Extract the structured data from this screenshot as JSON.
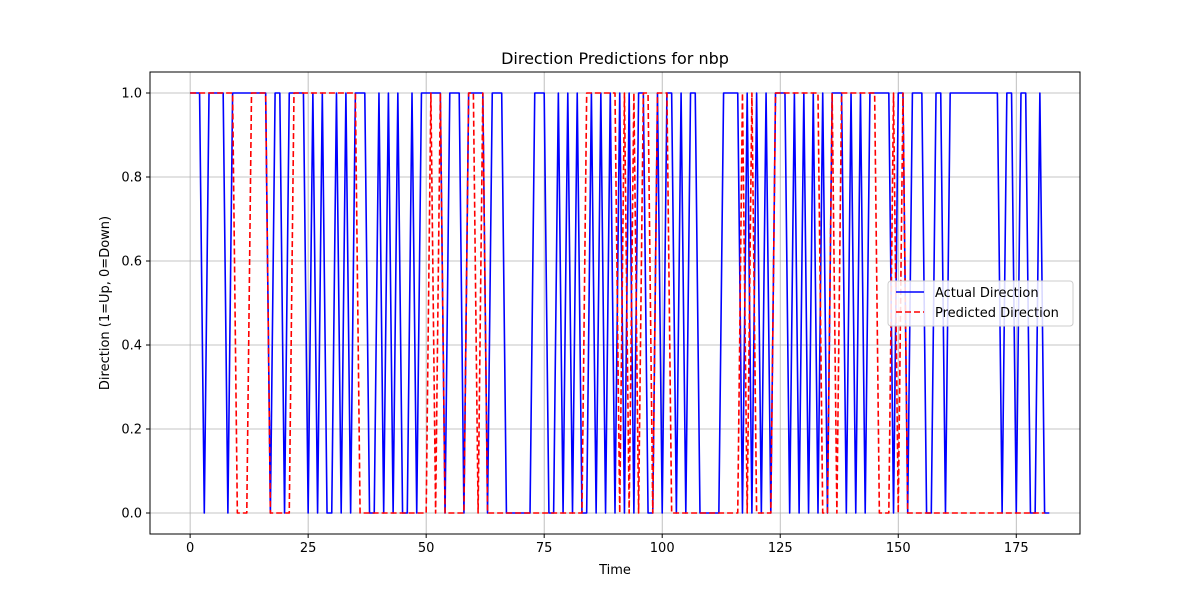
{
  "chart_data": {
    "type": "line",
    "title": "Direction Predictions for nbp",
    "xlabel": "Time",
    "ylabel": "Direction (1=Up, 0=Down)",
    "xlim": [
      -8.5,
      188.5
    ],
    "ylim": [
      -0.05,
      1.05
    ],
    "xticks": [
      0,
      25,
      50,
      75,
      100,
      125,
      150,
      175
    ],
    "yticks": [
      0.0,
      0.2,
      0.4,
      0.6,
      0.8,
      1.0
    ],
    "xtick_labels": [
      "0",
      "25",
      "50",
      "75",
      "100",
      "125",
      "150",
      "175"
    ],
    "ytick_labels": [
      "0.0",
      "0.2",
      "0.4",
      "0.6",
      "0.8",
      "1.0"
    ],
    "grid": true,
    "legend_position": "center-right",
    "series": [
      {
        "name": "Actual Direction",
        "color": "#0000ff",
        "style": "solid",
        "values": [
          1,
          1,
          1,
          0,
          1,
          1,
          1,
          1,
          0,
          1,
          1,
          1,
          1,
          1,
          1,
          1,
          1,
          0,
          1,
          1,
          0,
          1,
          1,
          1,
          1,
          0,
          1,
          0,
          1,
          0,
          0,
          1,
          0,
          1,
          0,
          1,
          1,
          1,
          0,
          0,
          1,
          0,
          1,
          0,
          1,
          0,
          0,
          1,
          0,
          1,
          1,
          1,
          1,
          1,
          0,
          1,
          1,
          1,
          0,
          1,
          1,
          1,
          1,
          0,
          1,
          1,
          1,
          0,
          0,
          0,
          0,
          0,
          0,
          1,
          1,
          1,
          0,
          0,
          1,
          0,
          1,
          0,
          1,
          0,
          0,
          1,
          0,
          1,
          0,
          1,
          0,
          1,
          0,
          1,
          0,
          1,
          1,
          0,
          0,
          1,
          0,
          1,
          1,
          0,
          1,
          0,
          1,
          1,
          0,
          0,
          0,
          0,
          0,
          1,
          1,
          1,
          1,
          0,
          1,
          0,
          1,
          0,
          1,
          0,
          1,
          1,
          1,
          0,
          1,
          0,
          1,
          0,
          1,
          0,
          1,
          0,
          1,
          1,
          1,
          0,
          1,
          0,
          1,
          0,
          1,
          1,
          1,
          1,
          1,
          0,
          1,
          1,
          0,
          1,
          1,
          1,
          0,
          0,
          1,
          1,
          0,
          1,
          1,
          1,
          1,
          1,
          1,
          1,
          1,
          1,
          1,
          1,
          0,
          1,
          1,
          0,
          1,
          1,
          0,
          0,
          1,
          0,
          0
        ]
      },
      {
        "name": "Predicted Direction",
        "color": "#ff0000",
        "style": "dashed",
        "values": [
          1,
          1,
          1,
          1,
          1,
          1,
          1,
          1,
          1,
          1,
          0,
          0,
          0,
          1,
          1,
          1,
          1,
          0,
          0,
          0,
          0,
          0,
          1,
          1,
          1,
          1,
          1,
          1,
          1,
          1,
          1,
          1,
          1,
          1,
          1,
          1,
          0,
          0,
          0,
          0,
          0,
          0,
          0,
          0,
          0,
          0,
          0,
          0,
          0,
          0,
          0,
          1,
          0,
          1,
          0,
          0,
          0,
          0,
          0,
          1,
          1,
          0,
          1,
          0,
          0,
          0,
          0,
          0,
          0,
          0,
          0,
          0,
          0,
          0,
          0,
          0,
          0,
          0,
          0,
          0,
          0,
          0,
          0,
          0,
          1,
          1,
          1,
          1,
          1,
          1,
          1,
          0,
          1,
          0,
          1,
          0,
          1,
          1,
          0,
          1,
          1,
          1,
          0,
          0,
          0,
          0,
          0,
          0,
          0,
          0,
          0,
          0,
          0,
          0,
          0,
          0,
          0,
          1,
          0,
          1,
          0,
          0,
          0,
          0,
          1,
          1,
          1,
          1,
          1,
          1,
          1,
          1,
          1,
          1,
          0,
          0,
          1,
          0,
          1,
          1,
          1,
          1,
          1,
          1,
          1,
          1,
          0,
          0,
          0,
          1,
          0,
          1,
          0,
          0,
          0,
          0,
          0,
          0,
          0,
          0,
          0,
          0,
          0,
          0,
          0,
          0,
          0,
          0,
          0,
          0,
          0,
          0,
          0,
          0,
          0,
          0,
          0,
          0,
          0,
          0,
          0,
          0
        ]
      }
    ]
  }
}
